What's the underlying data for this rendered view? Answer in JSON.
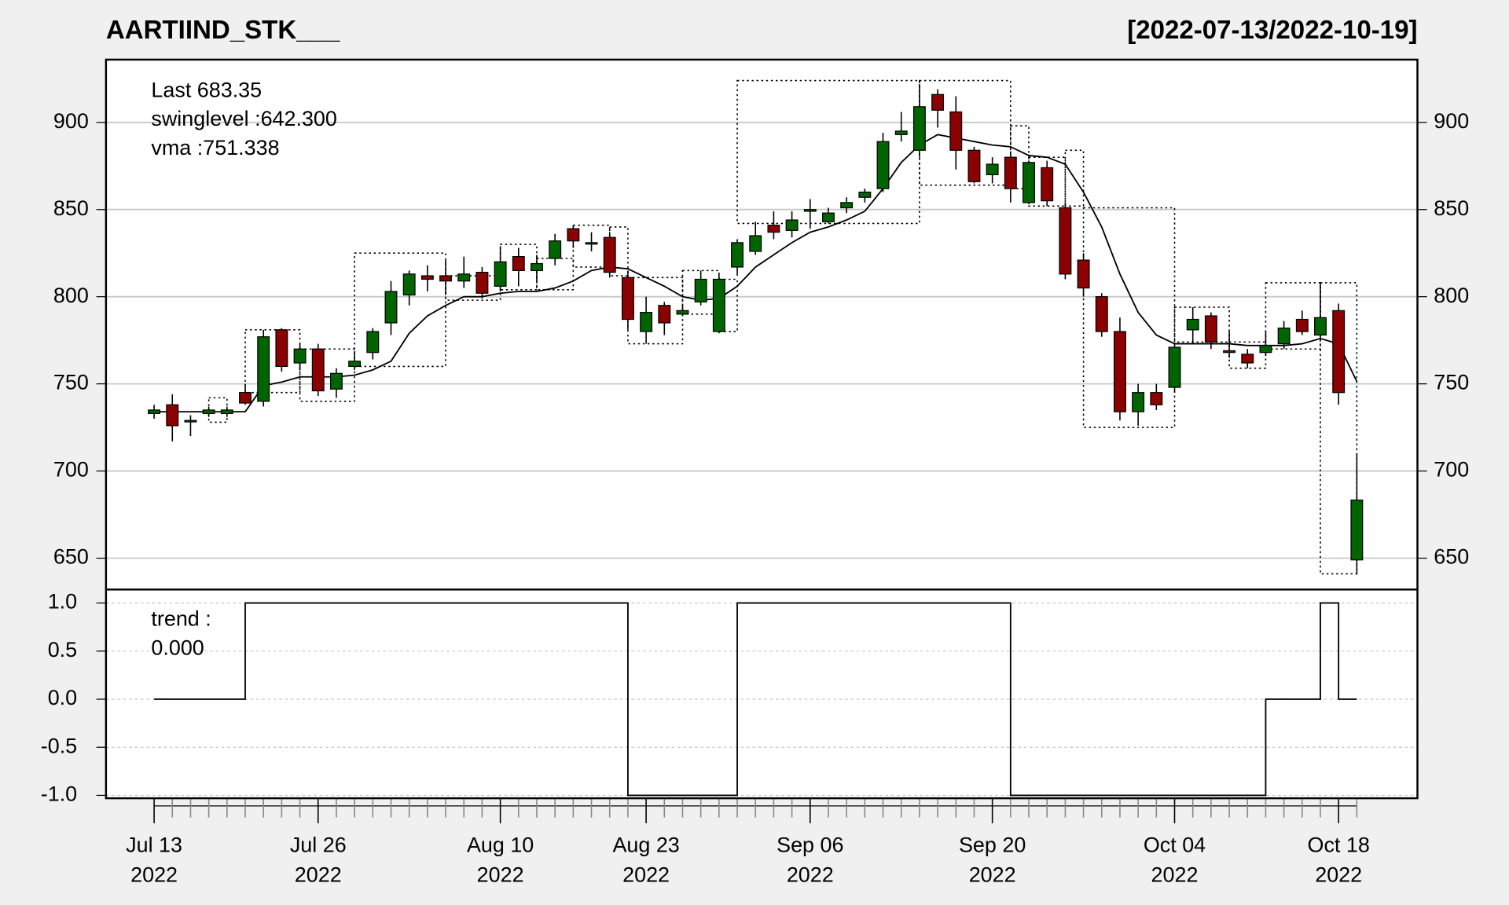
{
  "chart_data": [
    {
      "type": "candlestick",
      "title": "AARTIIND_STK___",
      "subtitle": "[2022-07-13/2022-10-19]",
      "legend": [
        "Last 683.35",
        "swinglevel :642.300",
        "vma :751.338"
      ],
      "legend_colors": [
        "#006400",
        "#000000",
        "#000000"
      ],
      "categories": [
        "Jul 13\n2022",
        null,
        null,
        null,
        null,
        null,
        null,
        null,
        null,
        "Jul 26\n2022",
        null,
        null,
        null,
        null,
        null,
        null,
        null,
        null,
        null,
        "Aug 10\n2022",
        null,
        null,
        null,
        null,
        null,
        null,
        null,
        "Aug 23\n2022",
        null,
        null,
        null,
        null,
        null,
        null,
        null,
        null,
        "Sep 06\n2022",
        null,
        null,
        null,
        null,
        null,
        null,
        null,
        null,
        null,
        "Sep 20\n2022",
        null,
        null,
        null,
        null,
        null,
        null,
        null,
        null,
        null,
        "Oct 04\n2022",
        null,
        null,
        null,
        null,
        null,
        null,
        null,
        null,
        "Oct 18\n2022",
        null
      ],
      "open": [
        733,
        738,
        729,
        733,
        733,
        745,
        740,
        781,
        762,
        770,
        747,
        760,
        768,
        785,
        801,
        812,
        812,
        809,
        814,
        806,
        823,
        815,
        822,
        839,
        831,
        834,
        811,
        780,
        795,
        790,
        797,
        780,
        817,
        826,
        841,
        838,
        849,
        843,
        851,
        857,
        862,
        893,
        884,
        916,
        906,
        884,
        870,
        880,
        854,
        874,
        851,
        821,
        800,
        780,
        734,
        745,
        748,
        781,
        789,
        769,
        767,
        768,
        773,
        787,
        778,
        792,
        649
      ],
      "high": [
        738,
        744,
        732,
        737,
        737,
        750,
        781,
        782,
        773,
        773,
        759,
        769,
        782,
        809,
        815,
        818,
        821,
        823,
        817,
        829,
        828,
        824,
        836,
        841,
        837,
        836,
        815,
        800,
        797,
        795,
        815,
        813,
        833,
        843,
        849,
        849,
        856,
        851,
        857,
        862,
        894,
        906,
        922,
        919,
        915,
        886,
        880,
        883,
        878,
        878,
        854,
        825,
        802,
        788,
        750,
        750,
        773,
        794,
        791,
        780,
        770,
        780,
        786,
        792,
        808,
        796,
        710
      ],
      "low": [
        730,
        717,
        720,
        731,
        731,
        738,
        737,
        757,
        758,
        743,
        742,
        758,
        764,
        778,
        795,
        803,
        801,
        805,
        799,
        803,
        806,
        809,
        818,
        828,
        826,
        811,
        781,
        773,
        778,
        789,
        795,
        779,
        812,
        824,
        833,
        834,
        839,
        842,
        848,
        854,
        860,
        889,
        880,
        897,
        873,
        865,
        865,
        854,
        853,
        852,
        810,
        800,
        777,
        729,
        726,
        735,
        745,
        773,
        770,
        765,
        759,
        766,
        770,
        778,
        776,
        738,
        641
      ],
      "close": [
        735,
        726,
        729,
        735,
        735,
        739,
        777,
        760,
        770,
        746,
        756,
        763,
        780,
        803,
        813,
        810,
        809,
        813,
        802,
        820,
        815,
        819,
        832,
        832,
        831,
        814,
        787,
        791,
        785,
        792,
        810,
        810,
        831,
        835,
        837,
        844,
        850,
        848,
        854,
        860,
        889,
        895,
        909,
        907,
        884,
        866,
        876,
        862,
        877,
        855,
        813,
        805,
        780,
        734,
        745,
        738,
        771,
        787,
        774,
        768,
        762,
        772,
        782,
        780,
        788,
        745,
        683.35
      ],
      "up_color": "#006400",
      "down_color": "#8b0000",
      "series": [
        {
          "name": "vma",
          "color": "#000000",
          "values": [
            734,
            734,
            734,
            734,
            734,
            734,
            749,
            751,
            754,
            754,
            754,
            755,
            758,
            763,
            779,
            789,
            795,
            800,
            800,
            802,
            803,
            803,
            805,
            809,
            815,
            817,
            816,
            811,
            806,
            800,
            798,
            799,
            806,
            817,
            824,
            831,
            837,
            840,
            844,
            849,
            862,
            877,
            887,
            893,
            891,
            889,
            887,
            886,
            881,
            880,
            876,
            860,
            840,
            813,
            791,
            778,
            773,
            773,
            773,
            773,
            772,
            772,
            772,
            773,
            776,
            773,
            751.338
          ]
        }
      ],
      "swing_boxes": [
        {
          "from": 3,
          "to": 4,
          "low": 728,
          "high": 742
        },
        {
          "from": 5,
          "to": 8,
          "low": 745,
          "high": 781
        },
        {
          "from": 8,
          "to": 11,
          "low": 740,
          "high": 770
        },
        {
          "from": 11,
          "to": 16,
          "low": 760,
          "high": 825
        },
        {
          "from": 16,
          "to": 19,
          "low": 798,
          "high": 812
        },
        {
          "from": 19,
          "to": 21,
          "low": 804,
          "high": 830
        },
        {
          "from": 21,
          "to": 23,
          "low": 804,
          "high": 822
        },
        {
          "from": 23,
          "to": 25,
          "low": 817,
          "high": 841
        },
        {
          "from": 25,
          "to": 26,
          "low": 812,
          "high": 840
        },
        {
          "from": 26,
          "to": 29,
          "low": 773,
          "high": 811
        },
        {
          "from": 29,
          "to": 31,
          "low": 790,
          "high": 815
        },
        {
          "from": 31,
          "to": 32,
          "low": 780,
          "high": 810
        },
        {
          "from": 32,
          "to": 42,
          "low": 842,
          "high": 924
        },
        {
          "from": 42,
          "to": 47,
          "low": 864,
          "high": 924
        },
        {
          "from": 47,
          "to": 48,
          "low": 862,
          "high": 898
        },
        {
          "from": 48,
          "to": 50,
          "low": 852,
          "high": 880
        },
        {
          "from": 50,
          "to": 51,
          "low": 852,
          "high": 884
        },
        {
          "from": 51,
          "to": 56,
          "low": 725,
          "high": 851
        },
        {
          "from": 56,
          "to": 59,
          "low": 774,
          "high": 794
        },
        {
          "from": 59,
          "to": 61,
          "low": 759,
          "high": 774
        },
        {
          "from": 61,
          "to": 64,
          "low": 770,
          "high": 808
        },
        {
          "from": 64,
          "to": 66,
          "low": 641,
          "high": 808
        }
      ],
      "ylim": [
        632,
        936
      ],
      "yticks": [
        650,
        700,
        750,
        800,
        850,
        900
      ],
      "grid": true
    },
    {
      "type": "step",
      "legend": [
        "trend :",
        "0.000"
      ],
      "series": [
        {
          "name": "trend",
          "color": "#000000",
          "values": [
            0,
            0,
            0,
            0,
            0,
            1,
            1,
            1,
            1,
            1,
            1,
            1,
            1,
            1,
            1,
            1,
            1,
            1,
            1,
            1,
            1,
            1,
            1,
            1,
            1,
            1,
            -1,
            -1,
            -1,
            -1,
            -1,
            -1,
            1,
            1,
            1,
            1,
            1,
            1,
            1,
            1,
            1,
            1,
            1,
            1,
            1,
            1,
            1,
            -1,
            -1,
            -1,
            -1,
            -1,
            -1,
            -1,
            -1,
            -1,
            -1,
            -1,
            -1,
            -1,
            -1,
            0,
            0,
            0,
            1,
            0,
            0
          ]
        }
      ],
      "ylim": [
        -1.03,
        1.14
      ],
      "yticks": [
        {
          "value": 1,
          "label": "1.0"
        },
        {
          "value": 0.5,
          "label": "0.5"
        },
        {
          "value": 0,
          "label": "0.0"
        },
        {
          "value": -0.5,
          "label": "-0.5"
        },
        {
          "value": -1,
          "label": "-1.0"
        }
      ],
      "grid": true
    }
  ]
}
